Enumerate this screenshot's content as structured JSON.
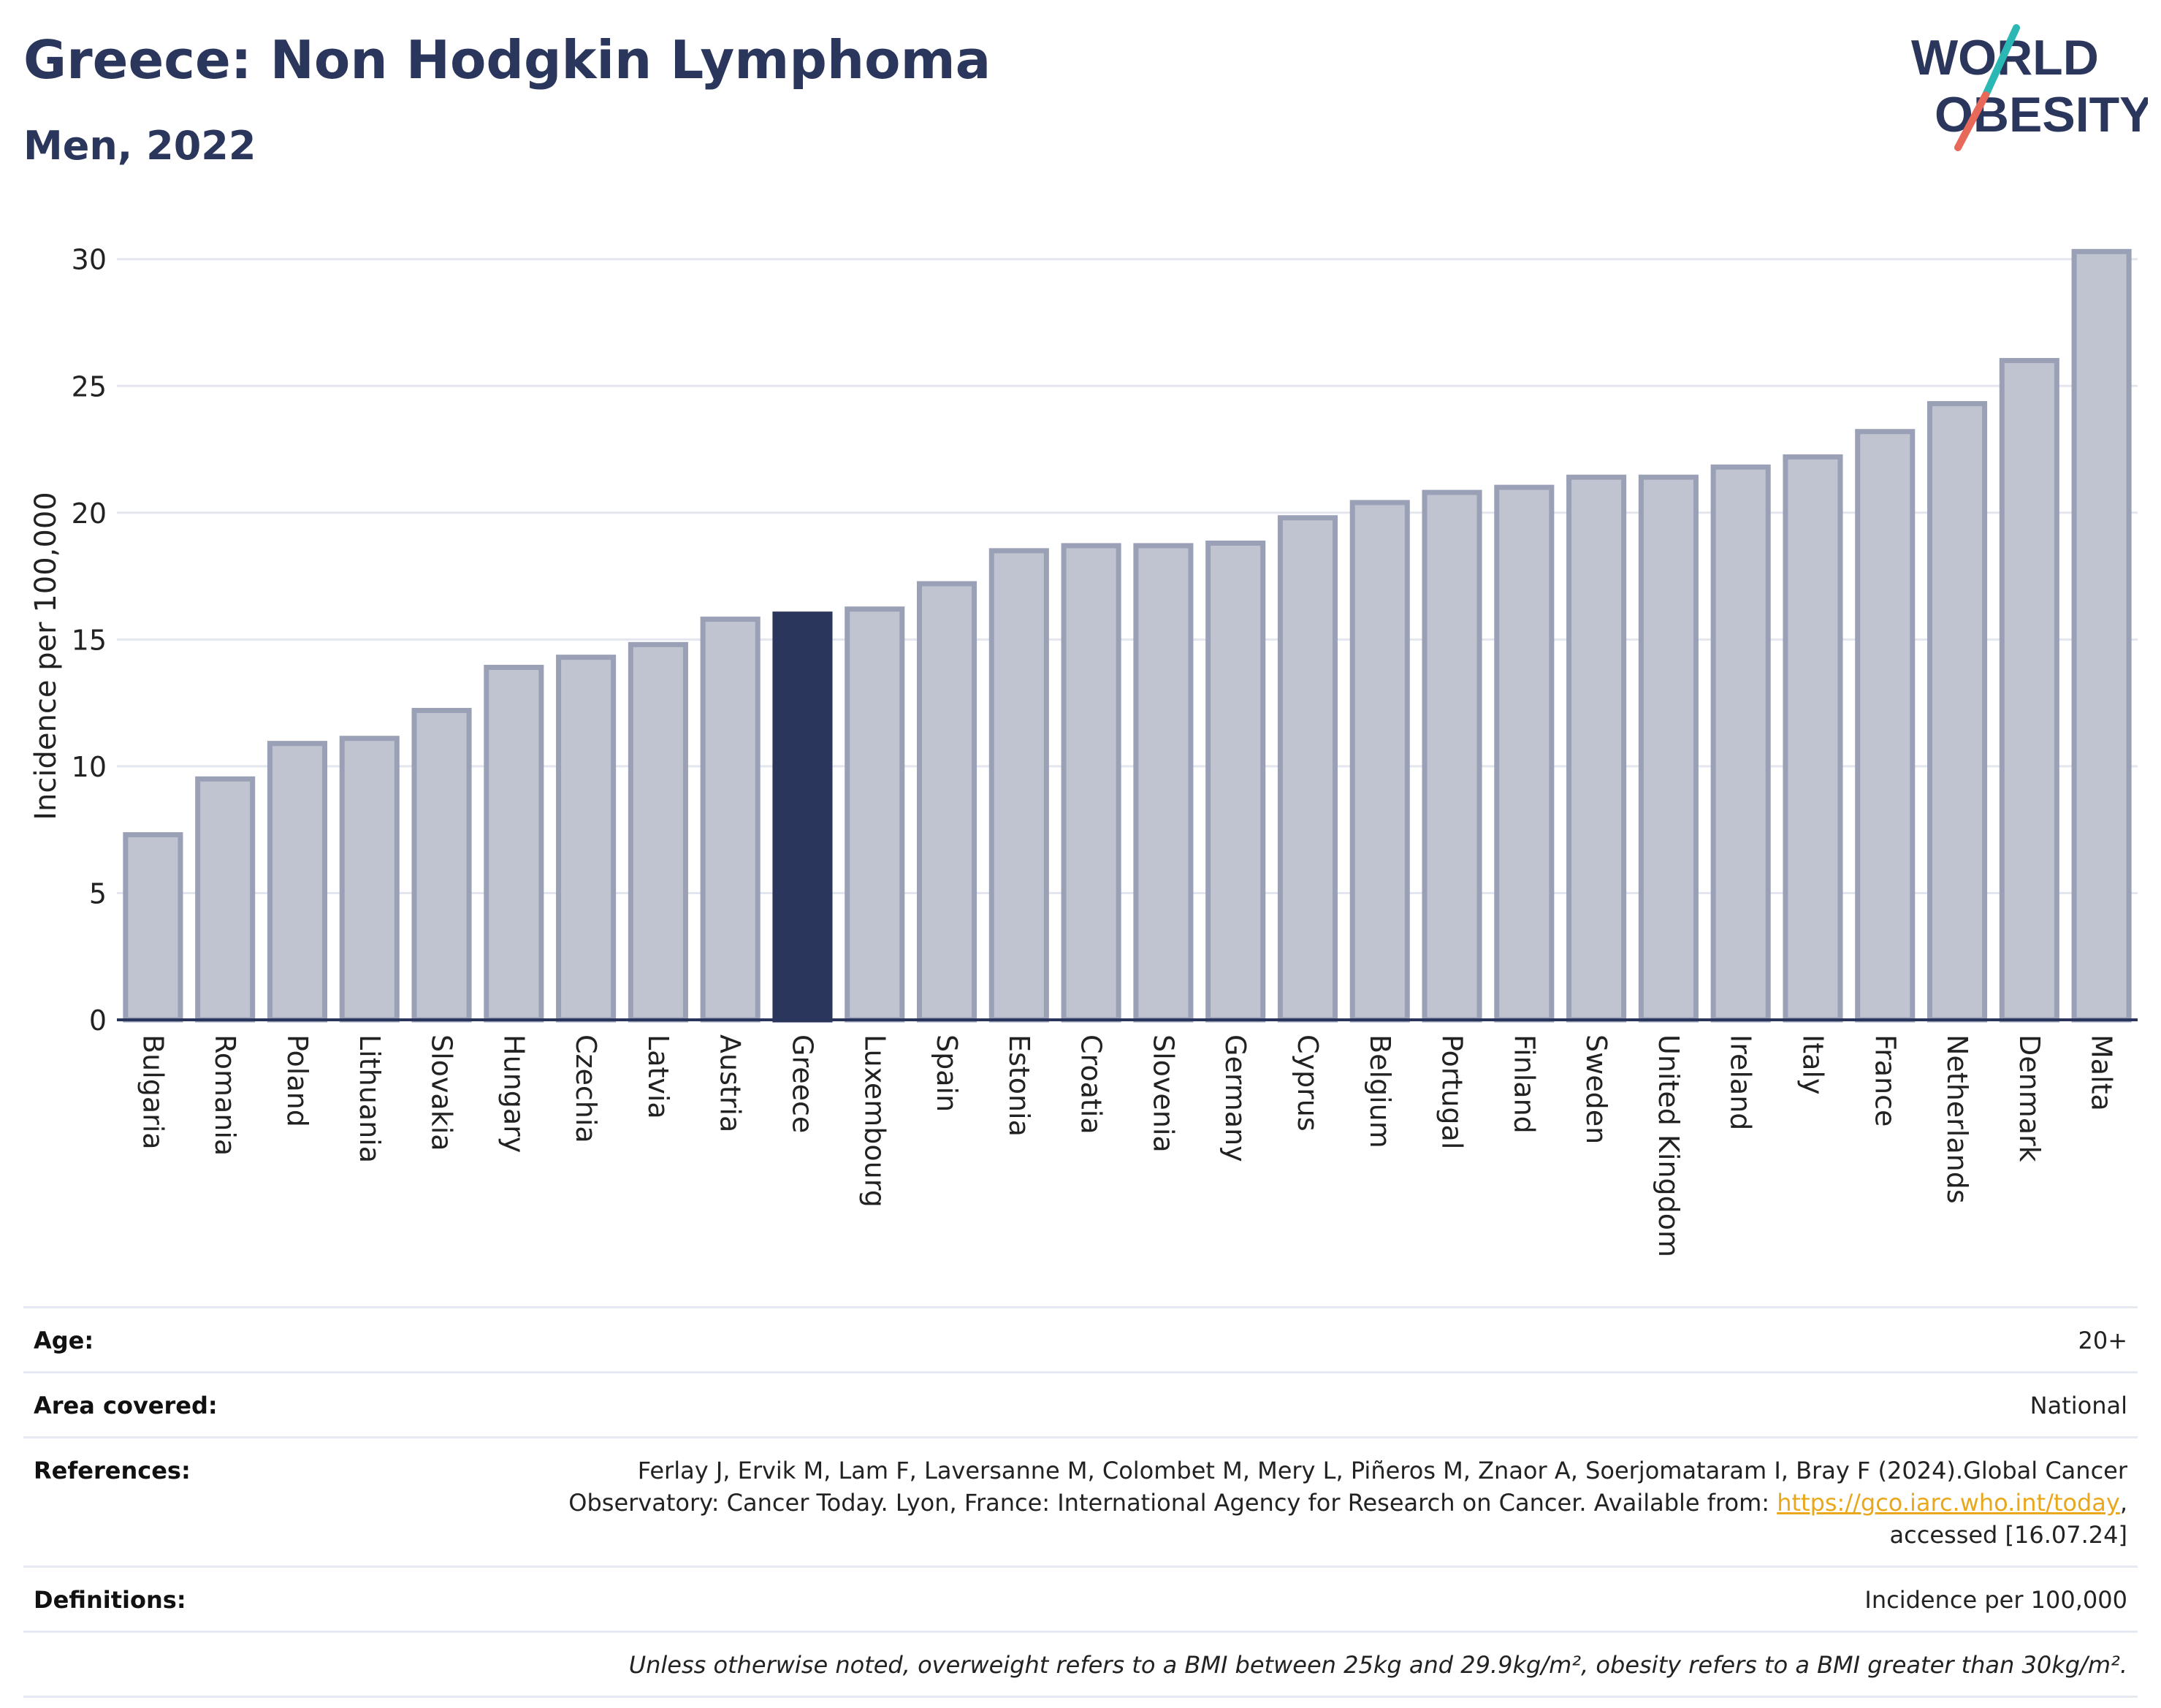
{
  "header": {
    "title": "Greece: Non Hodgkin Lymphoma",
    "subtitle": "Men, 2022"
  },
  "logo": {
    "line1": "WORLD",
    "line2": "OBESITY",
    "colors": {
      "text": "#2b365c",
      "slash_teal": "#2bb7b3",
      "slash_red": "#e8685a"
    }
  },
  "chart_data": {
    "type": "bar",
    "ylabel": "Incidence per 100,000",
    "ylim": [
      0,
      31
    ],
    "yticks": [
      0,
      5,
      10,
      15,
      20,
      25,
      30
    ],
    "grid": true,
    "highlight": "Greece",
    "colors": {
      "bar": "#c0c4d0",
      "bar_border": "#9aa0b6",
      "highlight": "#2b365c",
      "axis": "#2b365c",
      "grid": "#e3e6ee"
    },
    "categories": [
      "Bulgaria",
      "Romania",
      "Poland",
      "Lithuania",
      "Slovakia",
      "Hungary",
      "Czechia",
      "Latvia",
      "Austria",
      "Greece",
      "Luxembourg",
      "Spain",
      "Estonia",
      "Croatia",
      "Slovenia",
      "Germany",
      "Cyprus",
      "Belgium",
      "Portugal",
      "Finland",
      "Sweden",
      "United Kingdom",
      "Ireland",
      "Italy",
      "France",
      "Netherlands",
      "Denmark",
      "Malta"
    ],
    "values": [
      7.3,
      9.5,
      10.9,
      11.1,
      12.2,
      13.9,
      14.3,
      14.8,
      15.8,
      16.0,
      16.2,
      17.2,
      18.5,
      18.7,
      18.7,
      18.8,
      19.8,
      20.4,
      20.8,
      21.0,
      21.4,
      21.4,
      21.8,
      22.2,
      23.2,
      24.3,
      26.0,
      30.3
    ]
  },
  "meta": {
    "age_label": "Age:",
    "age_value": "20+",
    "area_label": "Area covered:",
    "area_value": "National",
    "references_label": "References:",
    "references_line1": "Ferlay J, Ervik M, Lam F, Laversanne M, Colombet M, Mery L, Piñeros M, Znaor A, Soerjomataram I, Bray F (2024).Global Cancer",
    "references_line2_pre": "Observatory: Cancer Today. Lyon, France: International Agency for Research on Cancer. Available from: ",
    "references_link": "https://gco.iarc.who.int/today",
    "references_line2_post": ",",
    "references_line3": "accessed [16.07.24]",
    "definitions_label": "Definitions:",
    "definitions_value": "Incidence per 100,000",
    "note": "Unless otherwise noted, overweight refers to a BMI between 25kg and 29.9kg/m², obesity refers to a BMI greater than 30kg/m²."
  }
}
